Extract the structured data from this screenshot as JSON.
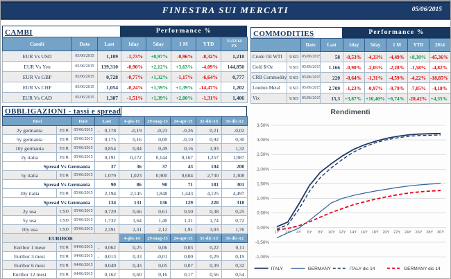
{
  "header": {
    "title": "FINESTRA SUI MERCATI",
    "date": "05/06/2015"
  },
  "colors": {
    "navy": "#17375E",
    "steel_blue": "#74A3C7",
    "negative": "#E00000",
    "positive": "#009A47"
  },
  "cambi": {
    "title": "CAMBI",
    "performance_label": "Performance  %",
    "columns": [
      "Cambi",
      "Date",
      "Last",
      "1day",
      "5day",
      "1 M",
      "YTD",
      "31/12/14\nFX"
    ],
    "rows": [
      {
        "name": "EUR Vs USD",
        "date": "05/06/2015",
        "last": "1,109",
        "perf": [
          "-1,73%",
          "+0,97%",
          "-0,96%",
          "-8,32%"
        ],
        "fx": "1,210"
      },
      {
        "name": "EUR Vs Yen",
        "date": "05/06/2015",
        "last": "139,310",
        "perf": [
          "-0,90%",
          "+2,12%",
          "+3,63%",
          "-4,09%"
        ],
        "fx": "144,850"
      },
      {
        "name": "EUR Vs GBP",
        "date": "05/06/2015",
        "last": "0,728",
        "perf": [
          "-0,77%",
          "+1,32%",
          "-1,17%",
          "-6,64%"
        ],
        "fx": "0,777"
      },
      {
        "name": "EUR Vs CHF",
        "date": "05/06/2015",
        "last": "1,054",
        "perf": [
          "-0,24%",
          "+1,59%",
          "+1,39%",
          "-14,47%"
        ],
        "fx": "1,202"
      },
      {
        "name": "EUR Vs CAD",
        "date": "05/06/2015",
        "last": "1,387",
        "perf": [
          "-1,51%",
          "+1,39%",
          "+2,80%",
          "-1,31%"
        ],
        "fx": "1,406"
      }
    ]
  },
  "commodities": {
    "title": "COMMODITIES",
    "performance_label": "Performance  %",
    "columns": [
      "",
      "Date",
      "Last",
      "1day",
      "5day",
      "1 M",
      "YTD",
      "2014"
    ],
    "rows": [
      {
        "name": "Crude Oil WTI",
        "ccy": "USD",
        "date": "05/06/2015",
        "last": "58",
        "perf": [
          "-0,53%",
          "-4,33%",
          "-4,49%",
          "+8,30%",
          "-45,36%"
        ]
      },
      {
        "name": "Gold $/Oz",
        "ccy": "USD",
        "date": "05/06/2015",
        "last": "1.166",
        "perf": [
          "-0,90%",
          "-2,05%",
          "-2,28%",
          "-1,58%",
          "-4,82%"
        ]
      },
      {
        "name": "CRB Commodity",
        "ccy": "USD",
        "date": "05/06/2015",
        "last": "220",
        "perf": [
          "-0,64%",
          "-1,31%",
          "-4,59%",
          "-4,22%",
          "-18,85%"
        ]
      },
      {
        "name": "London Metal",
        "ccy": "USD",
        "date": "05/06/2015",
        "last": "2.709",
        "perf": [
          "-1,23%",
          "-0,97%",
          "-9,79%",
          "-7,05%",
          "-4,18%"
        ]
      },
      {
        "name": "Vix",
        "ccy": "USD",
        "date": "05/06/2015",
        "last": "15,3",
        "perf": [
          "+3,87%",
          "+10,40%",
          "+6,74%",
          "-20,42%",
          "+4,35%"
        ]
      }
    ]
  },
  "obbligazioni": {
    "title": "OBBLIGAZIONI - tassi e spread",
    "columns": [
      "Tassi",
      "Date",
      "Last",
      "4-giu-15",
      "29-mag-15",
      "24-apr-15",
      "31-dic-13",
      "31-dic-12"
    ],
    "rows": [
      {
        "type": "rate",
        "name": "2y germania",
        "ccy": "EUR",
        "date": "05/06/2015",
        "last": "-0,178",
        "vals": [
          "-0,19",
          "-0,23",
          "-0,26",
          "0,21",
          "-0,02"
        ]
      },
      {
        "type": "rate",
        "name": "5y germania",
        "ccy": "EUR",
        "date": "05/06/2015",
        "last": "0,175",
        "vals": [
          "0,16",
          "0,00",
          "-0,10",
          "0,92",
          "0,30"
        ]
      },
      {
        "type": "rate",
        "name": "10y germania",
        "ccy": "EUR",
        "date": "05/06/2015",
        "last": "0,854",
        "vals": [
          "0,84",
          "0,49",
          "0,16",
          "1,93",
          "1,32"
        ]
      },
      {
        "type": "rate",
        "name": "2y italia",
        "ccy": "EUR",
        "date": "05/06/2015",
        "last": "0,191",
        "vals": [
          "0,172",
          "0,144",
          "0,167",
          "1,257",
          "1,987"
        ]
      },
      {
        "type": "spread",
        "name": "Spread Vs Germania",
        "last": "37",
        "vals": [
          "36",
          "37",
          "43",
          "104",
          "200"
        ]
      },
      {
        "type": "rate",
        "name": "5y italia",
        "ccy": "EUR",
        "date": "05/06/2015",
        "last": "1,079",
        "vals": [
          "1,023",
          "0,900",
          "0,604",
          "2,730",
          "3,308"
        ]
      },
      {
        "type": "spread",
        "name": "Spread Vs Germania",
        "last": "90",
        "vals": [
          "86",
          "90",
          "71",
          "181",
          "301"
        ]
      },
      {
        "type": "rate",
        "name": "10y italia",
        "ccy": "EUR",
        "date": "05/06/2015",
        "last": "2,194",
        "vals": [
          "2,145",
          "1,848",
          "1,443",
          "4,125",
          "4,497"
        ]
      },
      {
        "type": "spread",
        "name": "Spread Vs Germania",
        "last": "134",
        "vals": [
          "131",
          "136",
          "129",
          "220",
          "318"
        ]
      },
      {
        "type": "rate",
        "name": "2y usa",
        "ccy": "USD",
        "date": "05/06/2015",
        "last": "0,729",
        "vals": [
          "0,66",
          "0,61",
          "0,50",
          "0,38",
          "0,25"
        ]
      },
      {
        "type": "rate",
        "name": "5y usa",
        "ccy": "USD",
        "date": "05/06/2015",
        "last": "1,732",
        "vals": [
          "1,64",
          "1,40",
          "1,31",
          "1,74",
          "0,72"
        ]
      },
      {
        "type": "rate",
        "name": "10y usa",
        "ccy": "USD",
        "date": "05/06/2015",
        "last": "2,391",
        "vals": [
          "2,31",
          "2,12",
          "1,91",
          "3,03",
          "1,76"
        ]
      }
    ]
  },
  "euribor": {
    "title": "EURIBOR",
    "columns": [
      "4-giu-14",
      "29-mag-15",
      "24-apr-15",
      "31-dic-13",
      "31-dic-12"
    ],
    "rows": [
      {
        "name": "Euribor 1 mese",
        "ccy": "EUR",
        "date": "04/06/2015",
        "last": "-0,062",
        "vals": [
          "0,25",
          "0,06",
          "0,03",
          "0,22",
          "0,11"
        ]
      },
      {
        "name": "Euribor 3 mesi",
        "ccy": "EUR",
        "date": "04/06/2015",
        "last": "-0,013",
        "vals": [
          "0,33",
          "-0,01",
          "0,00",
          "0,29",
          "0,19"
        ]
      },
      {
        "name": "Euribor 6 mesi",
        "ccy": "EUR",
        "date": "04/06/2015",
        "last": "0,049",
        "vals": [
          "0,43",
          "0,05",
          "0,07",
          "0,39",
          "0,32"
        ]
      },
      {
        "name": "Euribor 12 mesi",
        "ccy": "EUR",
        "date": "04/06/2015",
        "last": "0,162",
        "vals": [
          "0,60",
          "0,16",
          "0,17",
          "0,56",
          "0,54"
        ]
      }
    ]
  },
  "chart_data": {
    "type": "line",
    "title": "Rendimenti",
    "x": [
      "1Y",
      "2Y",
      "4Y",
      "6Y",
      "8Y",
      "10Y",
      "12Y",
      "14Y",
      "16Y",
      "18Y",
      "20Y",
      "22Y",
      "24Y",
      "26Y",
      "28Y",
      "30Y"
    ],
    "ylim": [
      -1.0,
      3.5
    ],
    "ytick_step": 0.5,
    "grid": true,
    "legend_position": "bottom",
    "series": [
      {
        "name": "ITALY",
        "color": "#1F3864",
        "dash": false,
        "values": [
          0.03,
          0.19,
          0.8,
          1.45,
          1.9,
          2.19,
          2.45,
          2.67,
          2.83,
          2.95,
          3.05,
          3.12,
          3.17,
          3.2,
          3.21,
          3.22
        ]
      },
      {
        "name": "GERMANY",
        "color": "#31659C",
        "dash": false,
        "values": [
          -0.35,
          -0.18,
          -0.02,
          0.25,
          0.55,
          0.85,
          1.0,
          1.1,
          1.18,
          1.25,
          1.31,
          1.37,
          1.42,
          1.46,
          1.49,
          1.51
        ]
      },
      {
        "name": "ITALY dic 14",
        "color": "#1F3864",
        "dash": true,
        "values": [
          -0.05,
          0.1,
          0.62,
          1.25,
          1.72,
          2.05,
          2.33,
          2.58,
          2.76,
          2.9,
          3.0,
          3.07,
          3.12,
          3.15,
          3.16,
          3.17
        ]
      },
      {
        "name": "GERMANY dic 14",
        "color": "#E8001C",
        "dash": true,
        "values": [
          -0.08,
          -0.03,
          0.06,
          0.2,
          0.36,
          0.52,
          0.65,
          0.78,
          0.88,
          0.97,
          1.05,
          1.12,
          1.18,
          1.22,
          1.25,
          1.27
        ]
      }
    ]
  }
}
